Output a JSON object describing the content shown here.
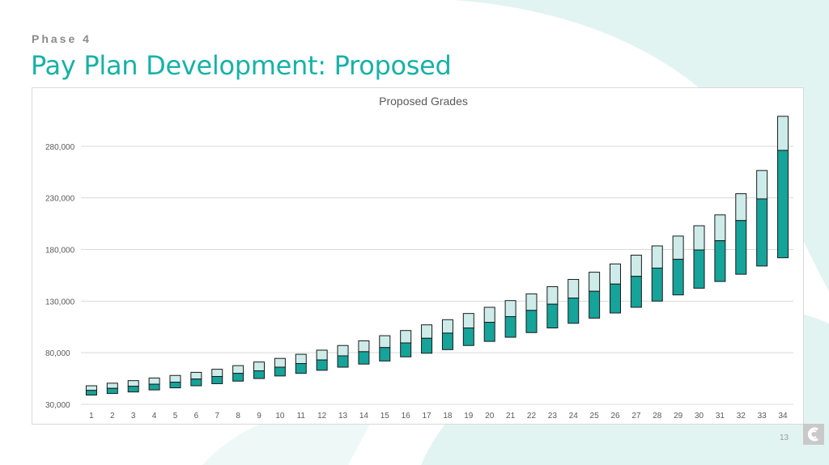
{
  "header": {
    "phase": "Phase 4",
    "title": "Pay Plan Development: Proposed"
  },
  "footer": {
    "page_number": "13",
    "logo_icon": "company-logo-icon"
  },
  "colors": {
    "accent": "#17b2a6",
    "bar_top": "#cdece9",
    "bar_bottom": "#15a39a",
    "bar_outline": "#1a1a1a",
    "grid": "#d9d9d9"
  },
  "chart_data": {
    "type": "bar",
    "subtype": "stacked-floating-range",
    "title": "Proposed Grades",
    "xlabel": "",
    "ylabel": "",
    "ylim": [
      30000,
      330000
    ],
    "yticks": [
      30000,
      80000,
      130000,
      180000,
      230000,
      280000
    ],
    "ytick_labels": [
      "30,000",
      "80,000",
      "130,000",
      "180,000",
      "230,000",
      "280,000"
    ],
    "grid": true,
    "legend": "none",
    "categories": [
      "1",
      "2",
      "3",
      "4",
      "5",
      "6",
      "7",
      "8",
      "9",
      "10",
      "11",
      "12",
      "13",
      "14",
      "15",
      "16",
      "17",
      "18",
      "19",
      "20",
      "21",
      "22",
      "23",
      "24",
      "25",
      "26",
      "27",
      "28",
      "29",
      "30",
      "31",
      "32",
      "33",
      "34"
    ],
    "series": [
      {
        "role": "minimum",
        "values": [
          39000,
          40500,
          42000,
          44000,
          46000,
          48000,
          50000,
          52500,
          55000,
          57500,
          60000,
          63000,
          66000,
          69000,
          72000,
          76000,
          79500,
          83000,
          87000,
          91000,
          95000,
          99500,
          104000,
          108500,
          113500,
          118500,
          124000,
          130000,
          136000,
          142500,
          149000,
          156000,
          164000,
          172000
        ]
      },
      {
        "role": "midpoint",
        "values": [
          43500,
          45500,
          47500,
          49500,
          51500,
          54500,
          57000,
          60000,
          62500,
          66000,
          69500,
          73000,
          77000,
          81000,
          85000,
          89500,
          94000,
          99000,
          104000,
          109500,
          115000,
          121000,
          127000,
          133000,
          139500,
          146500,
          154000,
          162000,
          170500,
          179500,
          188500,
          208000,
          229000,
          276000
        ]
      },
      {
        "role": "maximum",
        "values": [
          48000,
          50500,
          53000,
          55500,
          58000,
          61000,
          64000,
          67500,
          71000,
          74500,
          78500,
          82500,
          87000,
          91500,
          96500,
          101500,
          107000,
          112000,
          118000,
          124000,
          130500,
          137000,
          144000,
          151000,
          158000,
          166000,
          174500,
          183500,
          193000,
          203000,
          213500,
          234000,
          256500,
          309000
        ]
      }
    ]
  }
}
